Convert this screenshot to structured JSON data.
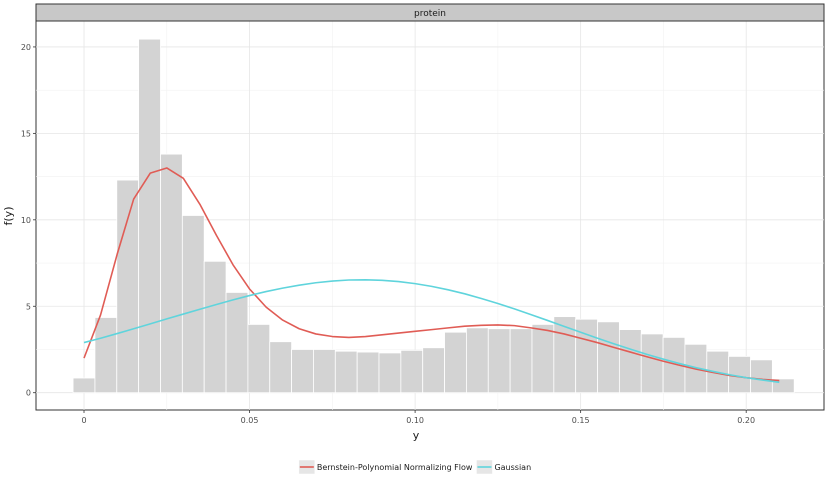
{
  "chart_data": {
    "type": "bar",
    "facet_title": "protein",
    "xlabel": "y",
    "ylabel": "f(y)",
    "xlim": [
      -0.0145,
      0.2235
    ],
    "ylim": [
      -1.0,
      21.5
    ],
    "x_ticks": [
      0,
      0.05,
      0.1,
      0.15,
      0.2
    ],
    "x_tick_labels": [
      "0",
      "0.05",
      "0.10",
      "0.15",
      "0.20"
    ],
    "y_ticks": [
      0,
      5,
      10,
      15,
      20
    ],
    "y_tick_labels": [
      "0",
      "5",
      "10",
      "15",
      "20"
    ],
    "grid": true,
    "legend_position": "bottom",
    "histogram": {
      "bin_width": 0.0066,
      "bin_centers": [
        0.0,
        0.0066,
        0.0132,
        0.0198,
        0.0264,
        0.033,
        0.0396,
        0.0462,
        0.0528,
        0.0594,
        0.066,
        0.0726,
        0.0792,
        0.0858,
        0.0924,
        0.099,
        0.1056,
        0.1122,
        0.1188,
        0.1254,
        0.132,
        0.1386,
        0.1452,
        0.1518,
        0.1584,
        0.165,
        0.1716,
        0.1782,
        0.1848,
        0.1914,
        0.198,
        0.2046,
        0.2112
      ],
      "density": [
        0.85,
        4.35,
        12.3,
        20.45,
        13.8,
        10.25,
        7.6,
        5.8,
        3.95,
        2.95,
        2.5,
        2.5,
        2.4,
        2.35,
        2.3,
        2.45,
        2.6,
        3.5,
        3.75,
        3.7,
        3.7,
        3.95,
        4.4,
        4.25,
        4.1,
        3.65,
        3.4,
        3.2,
        2.8,
        2.4,
        2.1,
        1.9,
        0.8
      ]
    },
    "series": [
      {
        "name": "Bernstein-Polynomial Normalizing Flow",
        "color": "#e05c55",
        "x": [
          0.0,
          0.005,
          0.01,
          0.015,
          0.02,
          0.025,
          0.03,
          0.035,
          0.04,
          0.045,
          0.05,
          0.055,
          0.06,
          0.065,
          0.07,
          0.075,
          0.08,
          0.085,
          0.09,
          0.095,
          0.1,
          0.105,
          0.11,
          0.115,
          0.12,
          0.125,
          0.13,
          0.135,
          0.14,
          0.145,
          0.15,
          0.155,
          0.16,
          0.165,
          0.17,
          0.175,
          0.18,
          0.185,
          0.19,
          0.195,
          0.2,
          0.205,
          0.21
        ],
        "y": [
          2.0,
          4.5,
          8.0,
          11.2,
          12.7,
          13.0,
          12.4,
          10.9,
          9.1,
          7.4,
          6.0,
          4.95,
          4.2,
          3.7,
          3.4,
          3.25,
          3.2,
          3.25,
          3.35,
          3.45,
          3.55,
          3.65,
          3.75,
          3.85,
          3.9,
          3.92,
          3.88,
          3.75,
          3.6,
          3.4,
          3.15,
          2.9,
          2.62,
          2.35,
          2.08,
          1.82,
          1.58,
          1.36,
          1.17,
          1.0,
          0.87,
          0.77,
          0.7
        ]
      },
      {
        "name": "Gaussian",
        "color": "#5fd4dc",
        "x": [
          0.0,
          0.005,
          0.01,
          0.015,
          0.02,
          0.025,
          0.03,
          0.035,
          0.04,
          0.045,
          0.05,
          0.055,
          0.06,
          0.065,
          0.07,
          0.075,
          0.08,
          0.085,
          0.09,
          0.095,
          0.1,
          0.105,
          0.11,
          0.115,
          0.12,
          0.125,
          0.13,
          0.135,
          0.14,
          0.145,
          0.15,
          0.155,
          0.16,
          0.165,
          0.17,
          0.175,
          0.18,
          0.185,
          0.19,
          0.195,
          0.2,
          0.205,
          0.21
        ],
        "y": [
          2.9,
          3.15,
          3.42,
          3.7,
          3.98,
          4.27,
          4.55,
          4.83,
          5.1,
          5.37,
          5.62,
          5.85,
          6.05,
          6.22,
          6.36,
          6.46,
          6.52,
          6.53,
          6.5,
          6.43,
          6.31,
          6.15,
          5.95,
          5.72,
          5.45,
          5.16,
          4.85,
          4.52,
          4.18,
          3.84,
          3.5,
          3.16,
          2.83,
          2.52,
          2.22,
          1.94,
          1.68,
          1.44,
          1.23,
          1.04,
          0.87,
          0.73,
          0.6
        ]
      }
    ]
  }
}
